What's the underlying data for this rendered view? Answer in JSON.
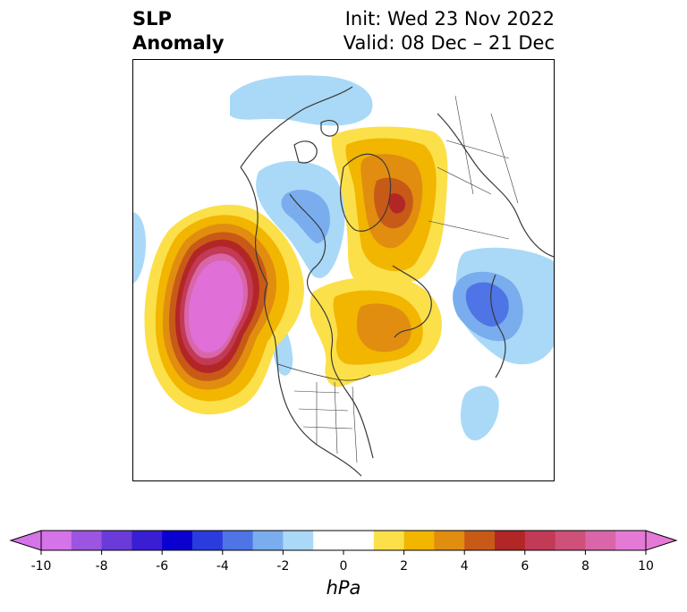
{
  "title": {
    "left_line1": "SLP",
    "left_line2": "Anomaly",
    "right_line1": "Init: Wed 23 Nov 2022",
    "right_line2": "Valid: 08 Dec – 21 Dec"
  },
  "colorbar": {
    "unit": "hPa",
    "ticks": [
      "-10",
      "-8",
      "-6",
      "-4",
      "-2",
      "0",
      "2",
      "4",
      "6",
      "8",
      "10"
    ],
    "tick_values": [
      -10,
      -8,
      -6,
      -4,
      -2,
      0,
      2,
      4,
      6,
      8,
      10
    ],
    "extend": "both",
    "bins": [
      {
        "from": -10,
        "to": -9,
        "color": "#d573e8"
      },
      {
        "from": -9,
        "to": -8,
        "color": "#9b55e0"
      },
      {
        "from": -8,
        "to": -7,
        "color": "#6a3bd9"
      },
      {
        "from": -7,
        "to": -6,
        "color": "#3a1ed3"
      },
      {
        "from": -6,
        "to": -5,
        "color": "#0a00cf"
      },
      {
        "from": -5,
        "to": -4,
        "color": "#2a3cdd"
      },
      {
        "from": -4,
        "to": -3,
        "color": "#4e74e6"
      },
      {
        "from": -3,
        "to": -2,
        "color": "#79adee"
      },
      {
        "from": -2,
        "to": -1,
        "color": "#a9d9f7"
      },
      {
        "from": -1,
        "to": 0,
        "color": "#ffffff"
      },
      {
        "from": 0,
        "to": 1,
        "color": "#ffffff"
      },
      {
        "from": 1,
        "to": 2,
        "color": "#fbe04a"
      },
      {
        "from": 2,
        "to": 3,
        "color": "#f2b500"
      },
      {
        "from": 3,
        "to": 4,
        "color": "#e18d10"
      },
      {
        "from": 4,
        "to": 5,
        "color": "#c85a18"
      },
      {
        "from": 5,
        "to": 6,
        "color": "#b32626"
      },
      {
        "from": 6,
        "to": 7,
        "color": "#c23a56"
      },
      {
        "from": 7,
        "to": 8,
        "color": "#cf5078"
      },
      {
        "from": 8,
        "to": 9,
        "color": "#d966a8"
      },
      {
        "from": 9,
        "to": 10,
        "color": "#e47ad6"
      }
    ],
    "under_color": "#d573e8",
    "over_color": "#e47ad6"
  },
  "colors": {
    "coastline": "#3a3a3a",
    "strong_positive": "#e070d8",
    "deep_red": "#b32626"
  }
}
